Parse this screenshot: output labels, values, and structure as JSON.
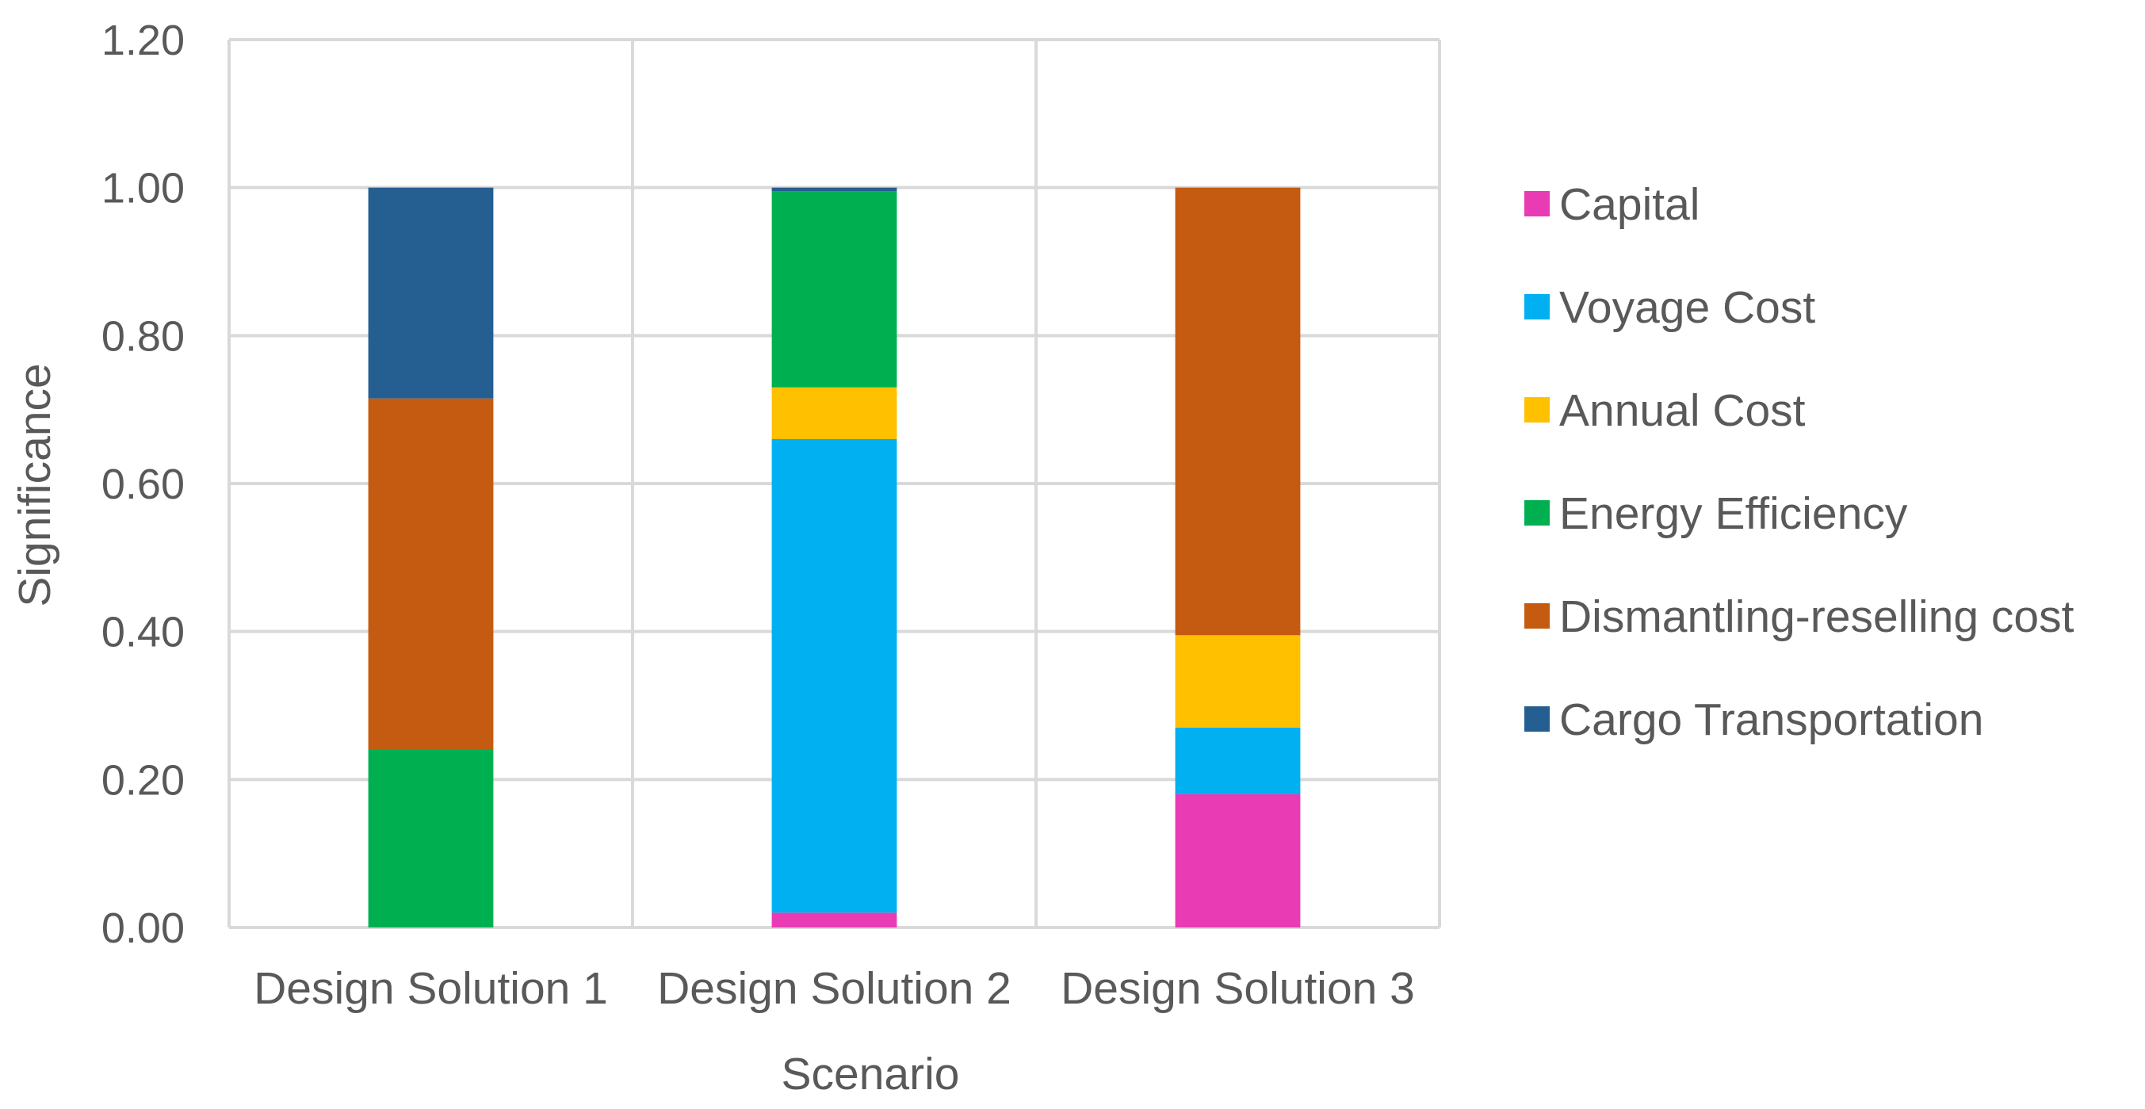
{
  "chart_data": {
    "type": "bar",
    "stacked": true,
    "xlabel": "Scenario",
    "ylabel": "Significance",
    "ylim": [
      0,
      1.2
    ],
    "yticks": [
      "0.00",
      "0.20",
      "0.40",
      "0.60",
      "0.80",
      "1.00",
      "1.20"
    ],
    "grid": true,
    "legend_position": "right",
    "categories": [
      "Design Solution 1",
      "Design Solution 2",
      "Design Solution 3"
    ],
    "series": [
      {
        "name": "Capital",
        "color": "#E83BB4",
        "values": [
          0.0,
          0.02,
          0.18
        ]
      },
      {
        "name": "Voyage Cost",
        "color": "#00B0F0",
        "values": [
          0.0,
          0.64,
          0.09
        ]
      },
      {
        "name": "Annual Cost",
        "color": "#FFC000",
        "values": [
          0.0,
          0.07,
          0.125
        ]
      },
      {
        "name": "Energy Efficiency",
        "color": "#00B050",
        "values": [
          0.24,
          0.265,
          0.0
        ]
      },
      {
        "name": "Dismantling-reselling cost",
        "color": "#C55A11",
        "values": [
          0.475,
          0.0,
          0.605
        ]
      },
      {
        "name": "Cargo Transportation",
        "color": "#255E91",
        "values": [
          0.285,
          0.005,
          0.0
        ]
      }
    ]
  }
}
